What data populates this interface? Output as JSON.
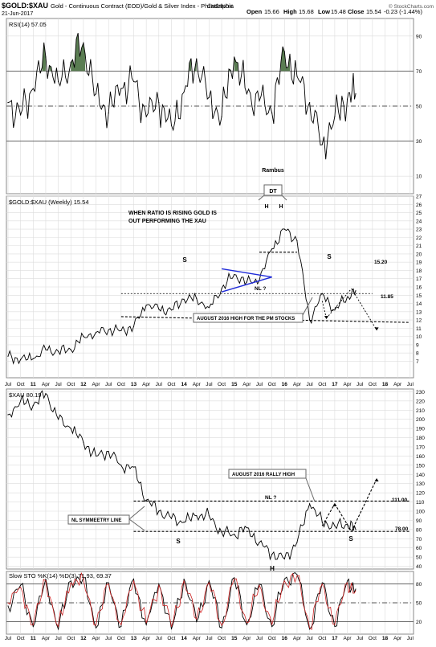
{
  "header": {
    "symbol": "$GOLD:$XAU",
    "description": "Gold - Continuous Contract (EOD)/Gold & Silver Index - Philadelphia",
    "exchange": "CME/INDX",
    "date": "21-Jun-2017",
    "open_label": "Open",
    "open": "15.66",
    "high_label": "High",
    "high": "15.68",
    "low_label": "Low",
    "low": "15.48",
    "close_label": "Close",
    "close": "15.54",
    "change": "-0.23 (-1.44%)",
    "watermark": "© StockCharts.com",
    "author": "Rambus"
  },
  "colors": {
    "line": "#000000",
    "blue_triangle": "#1f2bd8",
    "rsi_fill": "#5a7d52",
    "stoch_d": "#cc2222",
    "grid": "#dcdcdc"
  },
  "chart_data": [
    {
      "type": "line",
      "title": "RSI(14) 57.05",
      "ylim": [
        0,
        100
      ],
      "yticks": [
        "10",
        "30",
        "50",
        "70",
        "90"
      ],
      "reference_lines": [
        30,
        50,
        70
      ],
      "x": [
        "2010-07",
        "2010-10",
        "2011-01",
        "2011-04",
        "2011-07",
        "2011-10",
        "2012-01",
        "2012-04",
        "2012-07",
        "2012-10",
        "2013-01",
        "2013-04",
        "2013-07",
        "2013-10",
        "2014-01",
        "2014-04",
        "2014-07",
        "2014-10",
        "2015-01",
        "2015-04",
        "2015-07",
        "2015-10",
        "2016-01",
        "2016-04",
        "2016-07",
        "2016-10",
        "2017-01",
        "2017-04",
        "2017-06"
      ],
      "values": [
        52,
        45,
        60,
        78,
        64,
        75,
        86,
        57,
        46,
        60,
        64,
        44,
        52,
        39,
        58,
        77,
        55,
        44,
        78,
        57,
        53,
        46,
        81,
        67,
        52,
        28,
        44,
        54,
        57
      ]
    },
    {
      "type": "line",
      "title": "$GOLD:$XAU (Weekly) 15.54",
      "ylim": [
        5,
        27
      ],
      "yticks": [
        "7",
        "8",
        "9",
        "10",
        "11",
        "12",
        "13",
        "14",
        "15",
        "16",
        "17",
        "18",
        "19",
        "20",
        "21",
        "22",
        "23",
        "24",
        "25",
        "26",
        "27"
      ],
      "x": [
        "2010-07",
        "2010-10",
        "2011-01",
        "2011-04",
        "2011-07",
        "2011-10",
        "2012-01",
        "2012-04",
        "2012-07",
        "2012-10",
        "2013-01",
        "2013-04",
        "2013-07",
        "2013-10",
        "2014-01",
        "2014-04",
        "2014-07",
        "2014-10",
        "2015-01",
        "2015-04",
        "2015-07",
        "2015-10",
        "2016-01",
        "2016-04",
        "2016-07",
        "2016-10",
        "2017-01",
        "2017-04",
        "2017-06"
      ],
      "values": [
        7.6,
        7.2,
        7.3,
        8.4,
        8.2,
        8.4,
        10.0,
        10.5,
        10.8,
        10.7,
        11.2,
        13.8,
        13.3,
        13.2,
        14.5,
        14.6,
        13.5,
        15.8,
        17.5,
        16.6,
        16.8,
        20.6,
        23.0,
        21.6,
        12.0,
        15.2,
        13.2,
        14.8,
        15.54
      ],
      "annotations": [
        "WHEN RATIO IS RISING GOLD IS",
        "OUT PERFORMING THE XAU",
        "DT",
        "H",
        "H",
        "S",
        "S",
        "NL ?",
        "15.20",
        "11.85",
        "AUGUST 2016 HIGH FOR THE PM STOCKS"
      ]
    },
    {
      "type": "line",
      "title": "$XAU 80.19",
      "ylim": [
        37,
        233
      ],
      "yticks": [
        "40",
        "50",
        "60",
        "70",
        "80",
        "90",
        "100",
        "110",
        "120",
        "130",
        "140",
        "150",
        "160",
        "170",
        "180",
        "190",
        "200",
        "210",
        "220",
        "230"
      ],
      "x": [
        "2010-07",
        "2010-10",
        "2011-01",
        "2011-04",
        "2011-07",
        "2011-10",
        "2012-01",
        "2012-04",
        "2012-07",
        "2012-10",
        "2013-01",
        "2013-04",
        "2013-07",
        "2013-10",
        "2014-01",
        "2014-04",
        "2014-07",
        "2014-10",
        "2015-01",
        "2015-04",
        "2015-07",
        "2015-10",
        "2016-01",
        "2016-04",
        "2016-07",
        "2016-10",
        "2017-01",
        "2017-04",
        "2017-06"
      ],
      "values": [
        205,
        220,
        215,
        228,
        200,
        190,
        175,
        160,
        165,
        150,
        148,
        112,
        100,
        92,
        88,
        95,
        95,
        77,
        75,
        82,
        66,
        53,
        48,
        66,
        108,
        88,
        84,
        86,
        80.19
      ],
      "annotations": [
        "AUGUST 2016 RALLY HIGH",
        "NL ?",
        "NL SYMMEETRY LINE",
        "111.00",
        "78.00",
        "S",
        "S",
        "H"
      ]
    },
    {
      "type": "line",
      "title": "Slow STO %K(14) %D(3) 71.93, 69.37",
      "ylim": [
        0,
        100
      ],
      "yticks": [
        "20",
        "50",
        "80"
      ],
      "reference_lines": [
        20,
        50,
        80
      ],
      "x": [
        "2010-07",
        "2010-10",
        "2011-01",
        "2011-04",
        "2011-07",
        "2011-10",
        "2012-01",
        "2012-04",
        "2012-07",
        "2012-10",
        "2013-01",
        "2013-04",
        "2013-07",
        "2013-10",
        "2014-01",
        "2014-04",
        "2014-07",
        "2014-10",
        "2015-01",
        "2015-04",
        "2015-07",
        "2015-10",
        "2016-01",
        "2016-04",
        "2016-07",
        "2016-10",
        "2017-01",
        "2017-04",
        "2017-06"
      ],
      "series": [
        {
          "name": "%K(14)",
          "values": [
            45,
            78,
            12,
            88,
            8,
            85,
            90,
            10,
            82,
            12,
            88,
            15,
            80,
            8,
            88,
            20,
            85,
            10,
            90,
            15,
            80,
            12,
            88,
            95,
            8,
            82,
            12,
            85,
            71.93
          ]
        },
        {
          "name": "%D(3)",
          "values": [
            50,
            75,
            15,
            85,
            12,
            82,
            88,
            14,
            80,
            15,
            85,
            18,
            78,
            12,
            85,
            24,
            82,
            14,
            88,
            18,
            78,
            15,
            85,
            93,
            10,
            80,
            15,
            82,
            69.37
          ]
        }
      ]
    }
  ],
  "x_axis_labels": [
    "Jul",
    "Oct",
    "11",
    "Apr",
    "Jul",
    "Oct",
    "12",
    "Apr",
    "Jul",
    "Oct",
    "13",
    "Apr",
    "Jul",
    "Oct",
    "14",
    "Apr",
    "Jul",
    "Oct",
    "15",
    "Apr",
    "Jul",
    "Oct",
    "16",
    "Apr",
    "Jul",
    "Oct",
    "17",
    "Apr",
    "Jul",
    "Oct",
    "18",
    "Apr",
    "Jul"
  ]
}
